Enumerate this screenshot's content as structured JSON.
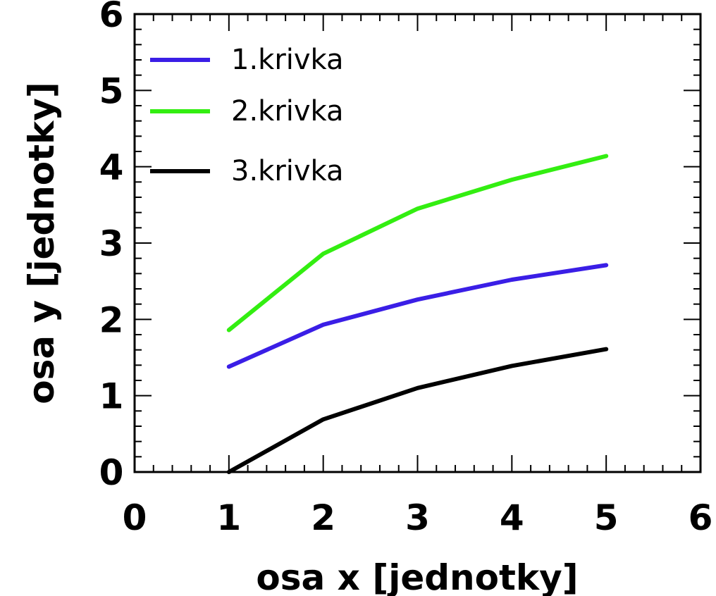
{
  "chart_data": {
    "type": "line",
    "title": "",
    "xlabel": "osa x [jednotky]",
    "ylabel": "osa y [jednotky]",
    "xlim": [
      0,
      6
    ],
    "ylim": [
      0,
      6
    ],
    "xticks": [
      "0",
      "1",
      "2",
      "3",
      "4",
      "5",
      "6"
    ],
    "yticks": [
      "0",
      "1",
      "2",
      "3",
      "4",
      "5",
      "6"
    ],
    "grid": false,
    "legend_position": "top-left",
    "x": [
      1,
      2,
      3,
      4,
      5
    ],
    "series": [
      {
        "name": "1.krivka",
        "color": "#3a1ee6",
        "values": [
          1.38,
          1.93,
          2.26,
          2.52,
          2.71
        ]
      },
      {
        "name": "2.krivka",
        "color": "#33ee11",
        "values": [
          1.86,
          2.86,
          3.45,
          3.83,
          4.14
        ]
      },
      {
        "name": "3.krivka",
        "color": "#000000",
        "values": [
          0.0,
          0.69,
          1.1,
          1.39,
          1.61
        ]
      }
    ]
  }
}
